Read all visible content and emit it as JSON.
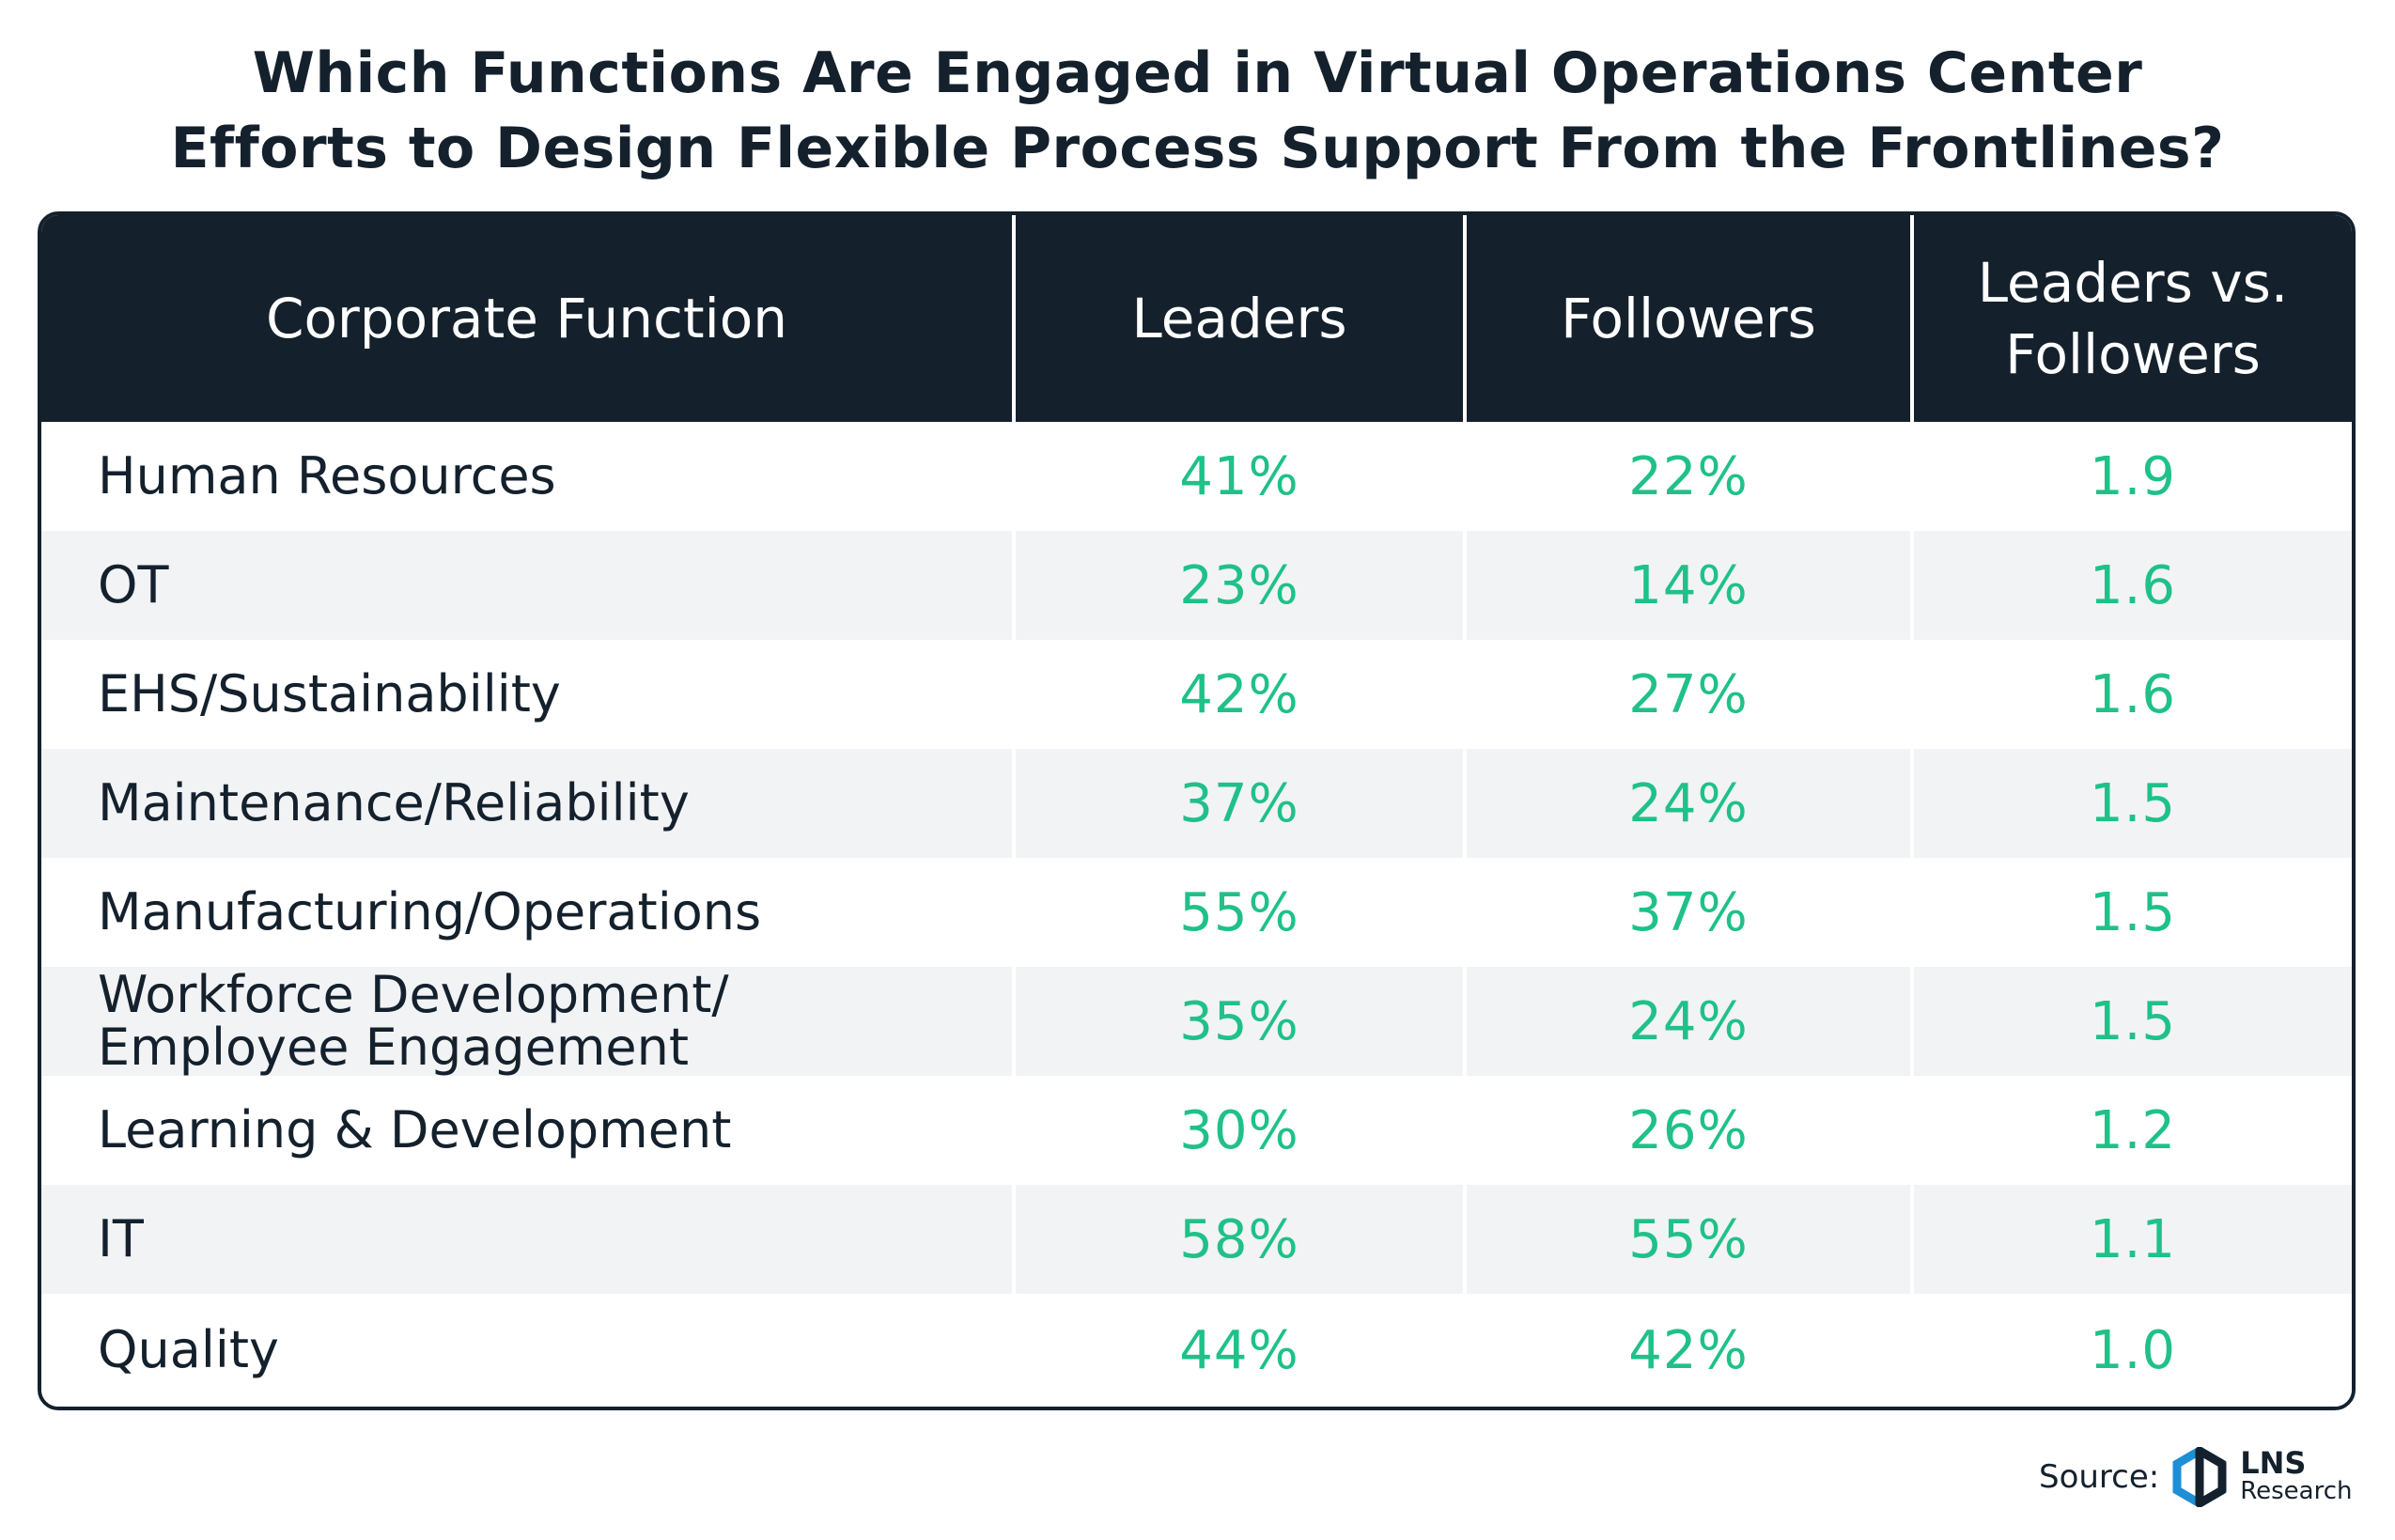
{
  "title": {
    "line1": "Which Functions Are Engaged in Virtual Operations Center",
    "line2": "Efforts to Design Flexible Process Support From the Frontlines?"
  },
  "chart_data": {
    "type": "table",
    "columns": [
      "Corporate Function",
      "Leaders",
      "Followers",
      "Leaders vs.\nFollowers"
    ],
    "rows": [
      {
        "function": "Human Resources",
        "leaders": "41%",
        "followers": "22%",
        "ratio": "1.9"
      },
      {
        "function": "OT",
        "leaders": "23%",
        "followers": "14%",
        "ratio": "1.6"
      },
      {
        "function": "EHS/Sustainability",
        "leaders": "42%",
        "followers": "27%",
        "ratio": "1.6"
      },
      {
        "function": "Maintenance/Reliability",
        "leaders": "37%",
        "followers": "24%",
        "ratio": "1.5"
      },
      {
        "function": "Manufacturing/Operations",
        "leaders": "55%",
        "followers": "37%",
        "ratio": "1.5"
      },
      {
        "function": "Workforce Development/\nEmployee Engagement",
        "leaders": "35%",
        "followers": "24%",
        "ratio": "1.5"
      },
      {
        "function": "Learning & Development",
        "leaders": "30%",
        "followers": "26%",
        "ratio": "1.2"
      },
      {
        "function": "IT",
        "leaders": "58%",
        "followers": "55%",
        "ratio": "1.1"
      },
      {
        "function": "Quality",
        "leaders": "44%",
        "followers": "42%",
        "ratio": "1.0"
      }
    ]
  },
  "colors": {
    "header_bg": "#14212d",
    "value_text": "#1fc188",
    "row_alt": "#f2f3f5",
    "logo_accent": "#1e8fd6"
  },
  "source": {
    "label": "Source:",
    "logo_brand": "LNS",
    "logo_sub": "Research",
    "logo_icon": "lns-hexagon-icon"
  }
}
